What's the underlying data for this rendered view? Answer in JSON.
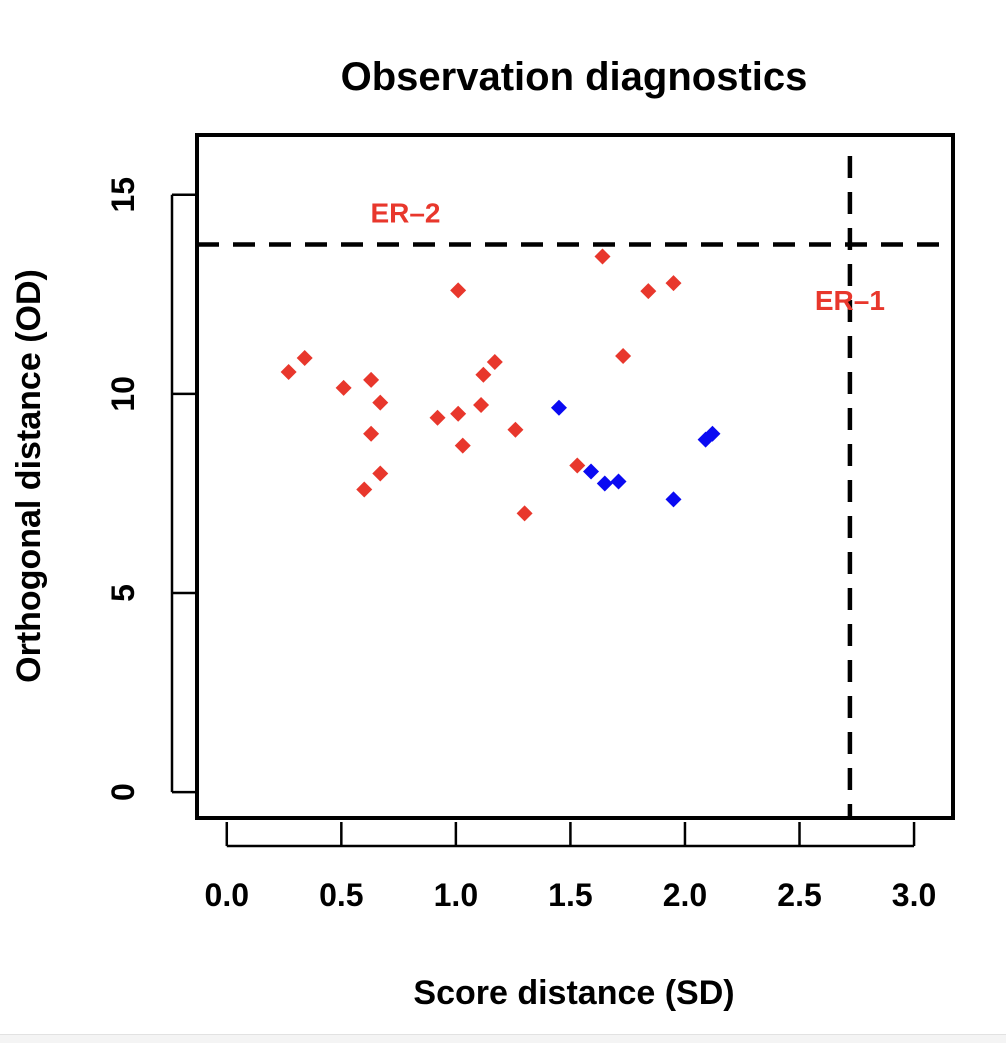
{
  "chart_data": {
    "type": "scatter",
    "title": "Observation diagnostics",
    "xlabel": "Score distance (SD)",
    "ylabel": "Orthogonal distance (OD)",
    "xlim": [
      -0.13,
      3.17
    ],
    "ylim": [
      -0.65,
      16.5
    ],
    "x_ticks": [
      0.0,
      0.5,
      1.0,
      1.5,
      2.0,
      2.5,
      3.0
    ],
    "x_tick_labels": [
      "0.0",
      "0.5",
      "1.0",
      "1.5",
      "2.0",
      "2.5",
      "3.0"
    ],
    "y_ticks": [
      0,
      5,
      10,
      15
    ],
    "y_tick_labels": [
      "0",
      "5",
      "10",
      "15"
    ],
    "grid": false,
    "marker": "diamond",
    "series": [
      {
        "color": "#e8372c",
        "points": [
          [
            0.27,
            10.55
          ],
          [
            0.34,
            10.9
          ],
          [
            0.51,
            10.15
          ],
          [
            0.63,
            10.35
          ],
          [
            0.67,
            9.78
          ],
          [
            0.63,
            9.0
          ],
          [
            0.67,
            8.0
          ],
          [
            0.6,
            7.6
          ],
          [
            0.92,
            9.4
          ],
          [
            1.01,
            9.5
          ],
          [
            1.03,
            8.7
          ],
          [
            1.01,
            12.6
          ],
          [
            1.11,
            9.72
          ],
          [
            1.12,
            10.48
          ],
          [
            1.17,
            10.8
          ],
          [
            1.26,
            9.1
          ],
          [
            1.3,
            7.0
          ],
          [
            1.53,
            8.2
          ],
          [
            1.64,
            13.45
          ],
          [
            1.73,
            10.95
          ],
          [
            1.84,
            12.58
          ],
          [
            1.95,
            12.78
          ]
        ]
      },
      {
        "color": "#0a0af2",
        "points": [
          [
            1.45,
            9.65
          ],
          [
            1.59,
            8.05
          ],
          [
            1.65,
            7.75
          ],
          [
            1.71,
            7.8
          ],
          [
            1.95,
            7.35
          ],
          [
            2.09,
            8.85
          ],
          [
            2.12,
            9.0
          ]
        ]
      }
    ],
    "cutoffs": {
      "vertical_x": 2.72,
      "horizontal_y": 13.75
    },
    "annotations": [
      {
        "text": "ER–2",
        "x": 0.78,
        "y": 14.3,
        "color": "#e8372c"
      },
      {
        "text": "ER–1",
        "x": 2.72,
        "y": 12.1,
        "color": "#e8372c"
      }
    ]
  }
}
